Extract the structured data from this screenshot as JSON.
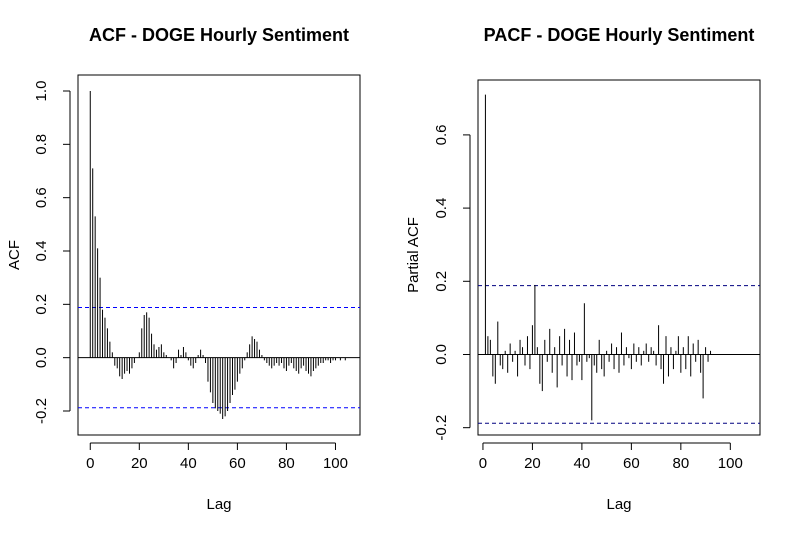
{
  "chart_data": [
    {
      "type": "bar",
      "title": "ACF - DOGE Hourly Sentiment",
      "xlabel": "Lag",
      "ylabel": "ACF",
      "xlim": [
        -5,
        110
      ],
      "ylim": [
        -0.29,
        1.06
      ],
      "xticks": [
        0,
        20,
        40,
        60,
        80,
        100
      ],
      "yticks": [
        -0.2,
        0.0,
        0.2,
        0.4,
        0.6,
        0.8,
        1.0
      ],
      "ci": [
        0.188,
        -0.188
      ],
      "ci_color": "#0000ff",
      "lags": [
        0,
        1,
        2,
        3,
        4,
        5,
        6,
        7,
        8,
        9,
        10,
        11,
        12,
        13,
        14,
        15,
        16,
        17,
        18,
        19,
        20,
        21,
        22,
        23,
        24,
        25,
        26,
        27,
        28,
        29,
        30,
        31,
        32,
        33,
        34,
        35,
        36,
        37,
        38,
        39,
        40,
        41,
        42,
        43,
        44,
        45,
        46,
        47,
        48,
        49,
        50,
        51,
        52,
        53,
        54,
        55,
        56,
        57,
        58,
        59,
        60,
        61,
        62,
        63,
        64,
        65,
        66,
        67,
        68,
        69,
        70,
        71,
        72,
        73,
        74,
        75,
        76,
        77,
        78,
        79,
        80,
        81,
        82,
        83,
        84,
        85,
        86,
        87,
        88,
        89,
        90,
        91,
        92,
        93,
        94,
        95,
        96,
        97,
        98,
        99,
        100,
        101,
        102,
        103,
        104,
        105,
        106
      ],
      "values": [
        1.0,
        0.71,
        0.53,
        0.41,
        0.3,
        0.18,
        0.15,
        0.11,
        0.06,
        0.02,
        -0.03,
        -0.04,
        -0.07,
        -0.08,
        -0.06,
        -0.05,
        -0.06,
        -0.04,
        -0.02,
        0.0,
        0.02,
        0.11,
        0.16,
        0.17,
        0.15,
        0.09,
        0.05,
        0.03,
        0.04,
        0.05,
        0.02,
        0.01,
        0.0,
        -0.01,
        -0.04,
        -0.02,
        0.03,
        0.01,
        0.04,
        0.02,
        -0.01,
        -0.03,
        -0.04,
        -0.02,
        0.01,
        0.03,
        0.01,
        -0.02,
        -0.09,
        -0.13,
        -0.17,
        -0.19,
        -0.2,
        -0.21,
        -0.23,
        -0.22,
        -0.2,
        -0.17,
        -0.14,
        -0.12,
        -0.09,
        -0.06,
        -0.04,
        -0.01,
        0.02,
        0.05,
        0.08,
        0.07,
        0.06,
        0.03,
        0.01,
        -0.01,
        -0.02,
        -0.03,
        -0.04,
        -0.03,
        -0.02,
        -0.03,
        -0.02,
        -0.04,
        -0.05,
        -0.03,
        -0.02,
        -0.04,
        -0.05,
        -0.06,
        -0.04,
        -0.03,
        -0.05,
        -0.06,
        -0.07,
        -0.05,
        -0.04,
        -0.03,
        -0.02,
        -0.02,
        -0.01,
        -0.01,
        -0.02,
        -0.01,
        -0.01,
        0.0,
        -0.01,
        0.0,
        -0.01,
        0.0,
        0.0
      ]
    },
    {
      "type": "bar",
      "title": "PACF - DOGE Hourly Sentiment",
      "xlabel": "Lag",
      "ylabel": "Partial ACF",
      "xlim": [
        -2,
        112
      ],
      "ylim": [
        -0.22,
        0.75
      ],
      "xticks": [
        0,
        20,
        40,
        60,
        80,
        100
      ],
      "yticks": [
        -0.2,
        0.0,
        0.2,
        0.4,
        0.6
      ],
      "ci": [
        0.188,
        -0.188
      ],
      "ci_color": "#000080",
      "lags": [
        1,
        2,
        3,
        4,
        5,
        6,
        7,
        8,
        9,
        10,
        11,
        12,
        13,
        14,
        15,
        16,
        17,
        18,
        19,
        20,
        21,
        22,
        23,
        24,
        25,
        26,
        27,
        28,
        29,
        30,
        31,
        32,
        33,
        34,
        35,
        36,
        37,
        38,
        39,
        40,
        41,
        42,
        43,
        44,
        45,
        46,
        47,
        48,
        49,
        50,
        51,
        52,
        53,
        54,
        55,
        56,
        57,
        58,
        59,
        60,
        61,
        62,
        63,
        64,
        65,
        66,
        67,
        68,
        69,
        70,
        71,
        72,
        73,
        74,
        75,
        76,
        77,
        78,
        79,
        80,
        81,
        82,
        83,
        84,
        85,
        86,
        87,
        88,
        89,
        90,
        91,
        92,
        93,
        94,
        95,
        96,
        97,
        98,
        99,
        100,
        101,
        102,
        103,
        104,
        105,
        106
      ],
      "values": [
        0.71,
        0.05,
        0.04,
        -0.06,
        -0.08,
        0.09,
        -0.03,
        -0.04,
        0.01,
        -0.05,
        0.03,
        -0.02,
        0.01,
        -0.06,
        0.04,
        0.02,
        -0.03,
        0.05,
        -0.04,
        0.08,
        0.19,
        0.02,
        -0.08,
        -0.1,
        0.04,
        -0.02,
        0.07,
        -0.05,
        0.02,
        -0.09,
        0.05,
        -0.03,
        0.07,
        -0.06,
        0.04,
        -0.07,
        0.06,
        -0.03,
        -0.02,
        -0.07,
        0.14,
        -0.02,
        -0.01,
        -0.18,
        -0.03,
        -0.05,
        0.04,
        -0.04,
        -0.06,
        0.01,
        -0.02,
        0.03,
        -0.04,
        0.02,
        -0.05,
        0.06,
        -0.03,
        0.02,
        -0.01,
        -0.04,
        0.03,
        -0.02,
        0.02,
        -0.03,
        0.01,
        0.03,
        -0.02,
        0.02,
        0.01,
        -0.03,
        0.08,
        -0.04,
        -0.08,
        0.05,
        -0.06,
        0.02,
        -0.04,
        0.01,
        0.05,
        -0.05,
        0.02,
        -0.04,
        0.05,
        -0.06,
        0.03,
        -0.02,
        0.04,
        -0.05,
        -0.12,
        0.02,
        -0.02,
        0.01,
        0.0,
        0.0,
        0.0,
        0.0,
        0.0,
        0.0,
        0.0,
        0.0,
        0.0,
        0.0,
        0.0,
        0.0,
        0.0,
        0.0
      ]
    }
  ]
}
